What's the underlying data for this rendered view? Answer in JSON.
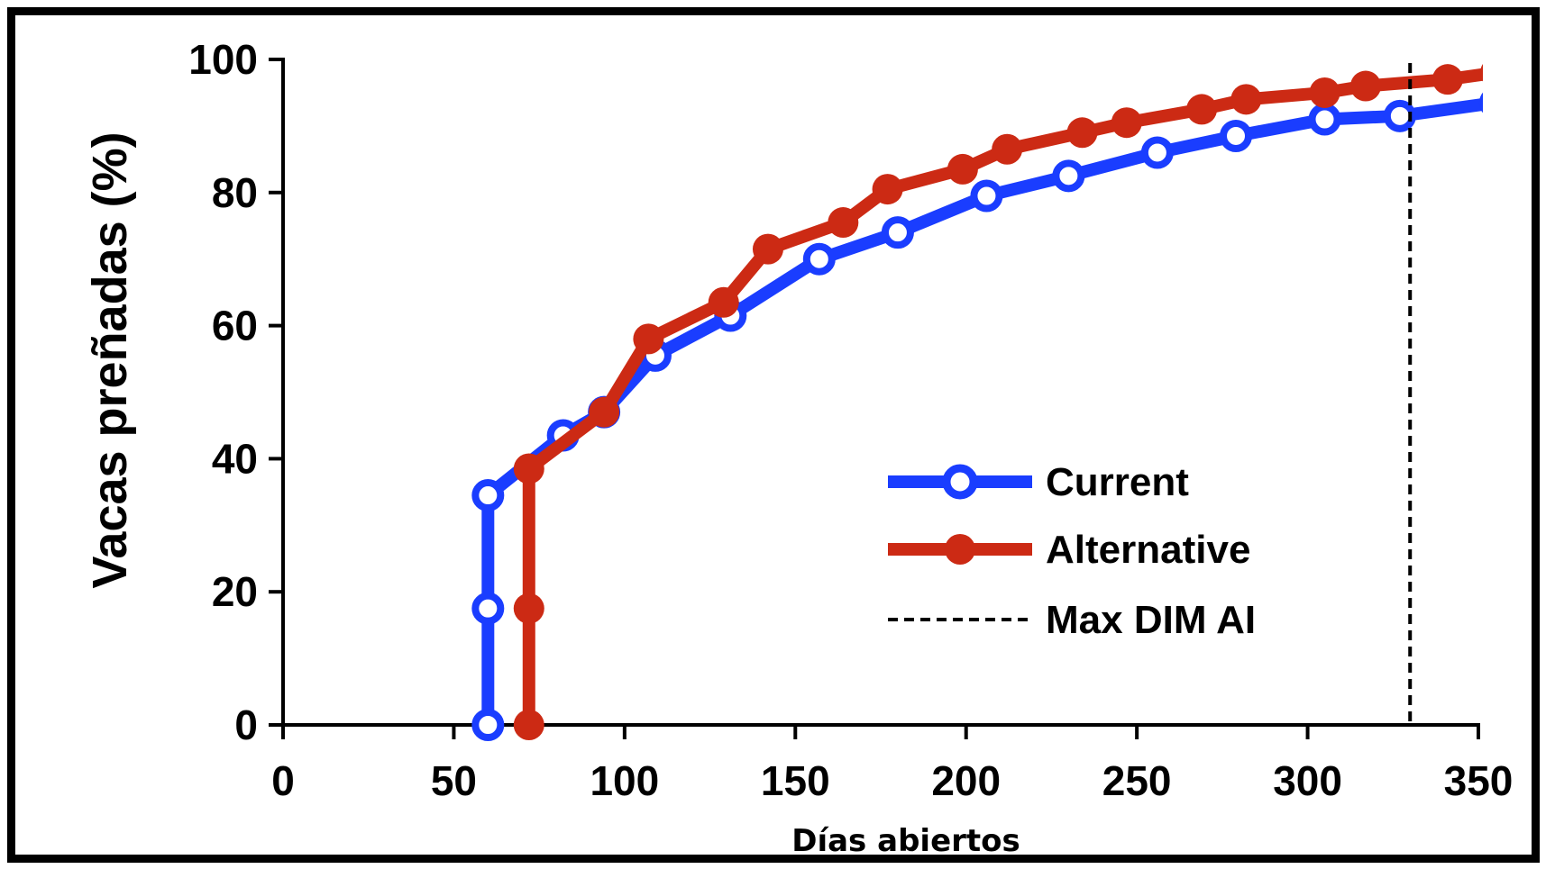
{
  "chart_data": {
    "type": "line",
    "title": "",
    "xlabel": "Días abiertos",
    "ylabel": "Vacas preñadas (%)",
    "xlim": [
      0,
      350
    ],
    "ylim": [
      0,
      100
    ],
    "x_ticks": [
      "0",
      "50",
      "100",
      "150",
      "200",
      "250",
      "300",
      "350"
    ],
    "y_ticks": [
      "0",
      "20",
      "40",
      "60",
      "80",
      "100"
    ],
    "grid": false,
    "legend_position": "lower-right",
    "series": [
      {
        "name": "Current",
        "color": "#1a3dff",
        "marker": "open-circle",
        "points": [
          [
            60,
            0
          ],
          [
            60,
            17.5
          ],
          [
            60,
            34.5
          ],
          [
            82,
            43.5
          ],
          [
            94,
            47
          ],
          [
            109,
            55.5
          ],
          [
            131,
            61.5
          ],
          [
            157,
            70
          ],
          [
            180,
            74
          ],
          [
            206,
            79.5
          ],
          [
            230,
            82.5
          ],
          [
            256,
            86
          ],
          [
            279,
            88.5
          ],
          [
            305,
            91
          ],
          [
            327,
            91.5
          ],
          [
            355,
            93.5
          ]
        ]
      },
      {
        "name": "Alternative",
        "color": "#cc2a14",
        "marker": "filled-circle",
        "points": [
          [
            72,
            0
          ],
          [
            72,
            17.5
          ],
          [
            72,
            38.5
          ],
          [
            94,
            47
          ],
          [
            107,
            58
          ],
          [
            129,
            63.5
          ],
          [
            142,
            71.5
          ],
          [
            164,
            75.5
          ],
          [
            177,
            80.5
          ],
          [
            199,
            83.5
          ],
          [
            212,
            86.5
          ],
          [
            234,
            89
          ],
          [
            247,
            90.5
          ],
          [
            269,
            92.5
          ],
          [
            282,
            94
          ],
          [
            305,
            95
          ],
          [
            317,
            96
          ],
          [
            341,
            97
          ],
          [
            355,
            98
          ]
        ]
      },
      {
        "name": "Max DIM AI",
        "color": "#000000",
        "style": "dashed-vertical",
        "x": 330
      }
    ]
  }
}
